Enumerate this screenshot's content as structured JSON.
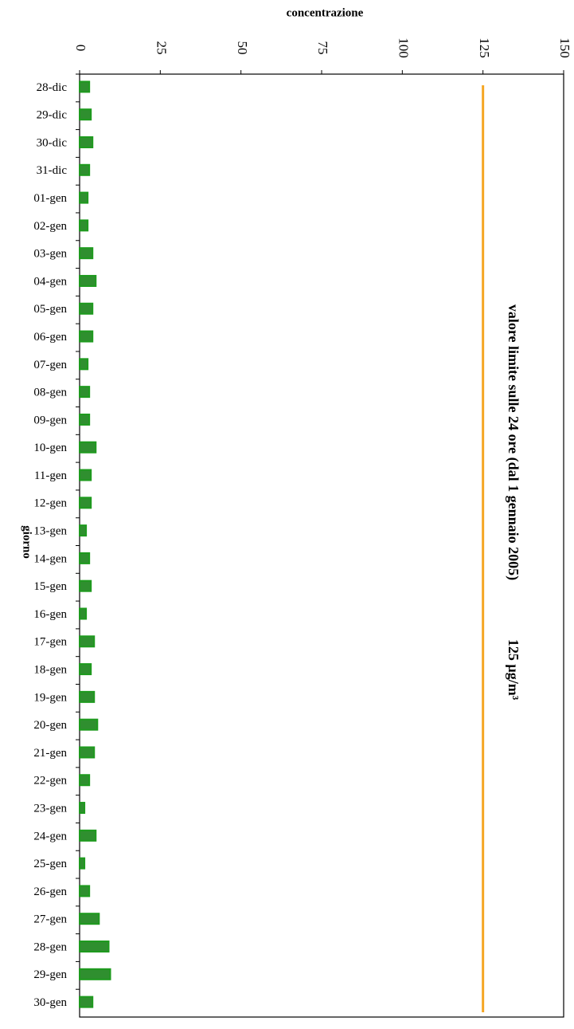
{
  "chart_data": {
    "type": "bar",
    "orientation": "horizontal",
    "title": "concentrazione",
    "y_label": "giorno",
    "categories": [
      "28-dic",
      "29-dic",
      "30-dic",
      "31-dic",
      "01-gen",
      "02-gen",
      "03-gen",
      "04-gen",
      "05-gen",
      "06-gen",
      "07-gen",
      "08-gen",
      "09-gen",
      "10-gen",
      "11-gen",
      "12-gen",
      "13-gen",
      "14-gen",
      "15-gen",
      "16-gen",
      "17-gen",
      "18-gen",
      "19-gen",
      "20-gen",
      "21-gen",
      "22-gen",
      "23-gen",
      "24-gen",
      "25-gen",
      "26-gen",
      "27-gen",
      "28-gen",
      "29-gen",
      "30-gen"
    ],
    "values": [
      3,
      3.5,
      4,
      3,
      2.5,
      2.5,
      4,
      5,
      4,
      4,
      2.5,
      3,
      3,
      5,
      3.5,
      3.5,
      2,
      3,
      3.5,
      2,
      4.5,
      3.5,
      4.5,
      5.5,
      4.5,
      3,
      1.5,
      5,
      1.5,
      3,
      6,
      9,
      9.5,
      4
    ],
    "color": "#2f8f2f",
    "xlim": [
      0,
      150
    ],
    "xticks": [
      0,
      25,
      50,
      75,
      100,
      125,
      150
    ],
    "grid": false,
    "limit": {
      "value": 125,
      "color": "#f5a623",
      "annotation": "valore limite sulle 24 ore (dal 1 gennaio 2005)",
      "label": "125 µg/m³"
    }
  }
}
